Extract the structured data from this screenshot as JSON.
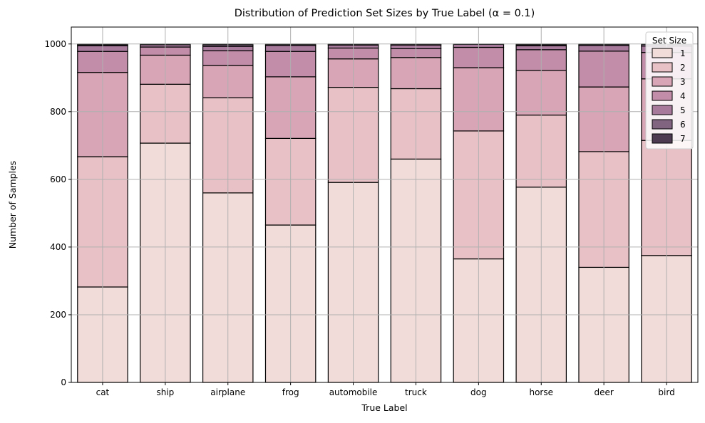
{
  "chart_data": {
    "type": "bar",
    "stacked": true,
    "title": "Distribution of Prediction Set Sizes by True Label (α = 0.1)",
    "xlabel": "True Label",
    "ylabel": "Number of Samples",
    "ylim": [
      0,
      1050
    ],
    "yticks": [
      0,
      200,
      400,
      600,
      800,
      1000
    ],
    "grid": true,
    "legend_title": "Set Size",
    "legend_position": "top-right",
    "categories": [
      "cat",
      "ship",
      "airplane",
      "frog",
      "automobile",
      "truck",
      "dog",
      "horse",
      "deer",
      "bird"
    ],
    "series": [
      {
        "name": "1",
        "color": "#f2dcd9",
        "values": [
          282,
          707,
          560,
          465,
          591,
          660,
          365,
          577,
          340,
          375
        ]
      },
      {
        "name": "2",
        "color": "#e8c1c6",
        "values": [
          385,
          174,
          281,
          256,
          281,
          208,
          378,
          213,
          342,
          340
        ]
      },
      {
        "name": "3",
        "color": "#d7a5b5",
        "values": [
          249,
          86,
          96,
          182,
          84,
          92,
          187,
          132,
          191,
          182
        ]
      },
      {
        "name": "4",
        "color": "#c18da8",
        "values": [
          62,
          24,
          43,
          75,
          32,
          26,
          60,
          61,
          106,
          78
        ]
      },
      {
        "name": "5",
        "color": "#a77a9c",
        "values": [
          17,
          7,
          13,
          18,
          9,
          11,
          9,
          12,
          17,
          19
        ]
      },
      {
        "name": "6",
        "color": "#806480",
        "values": [
          3,
          2,
          5,
          3,
          2,
          2,
          1,
          3,
          3,
          5
        ]
      },
      {
        "name": "7",
        "color": "#4d3b52",
        "values": [
          2,
          0,
          2,
          1,
          1,
          1,
          0,
          2,
          1,
          1
        ]
      }
    ]
  }
}
